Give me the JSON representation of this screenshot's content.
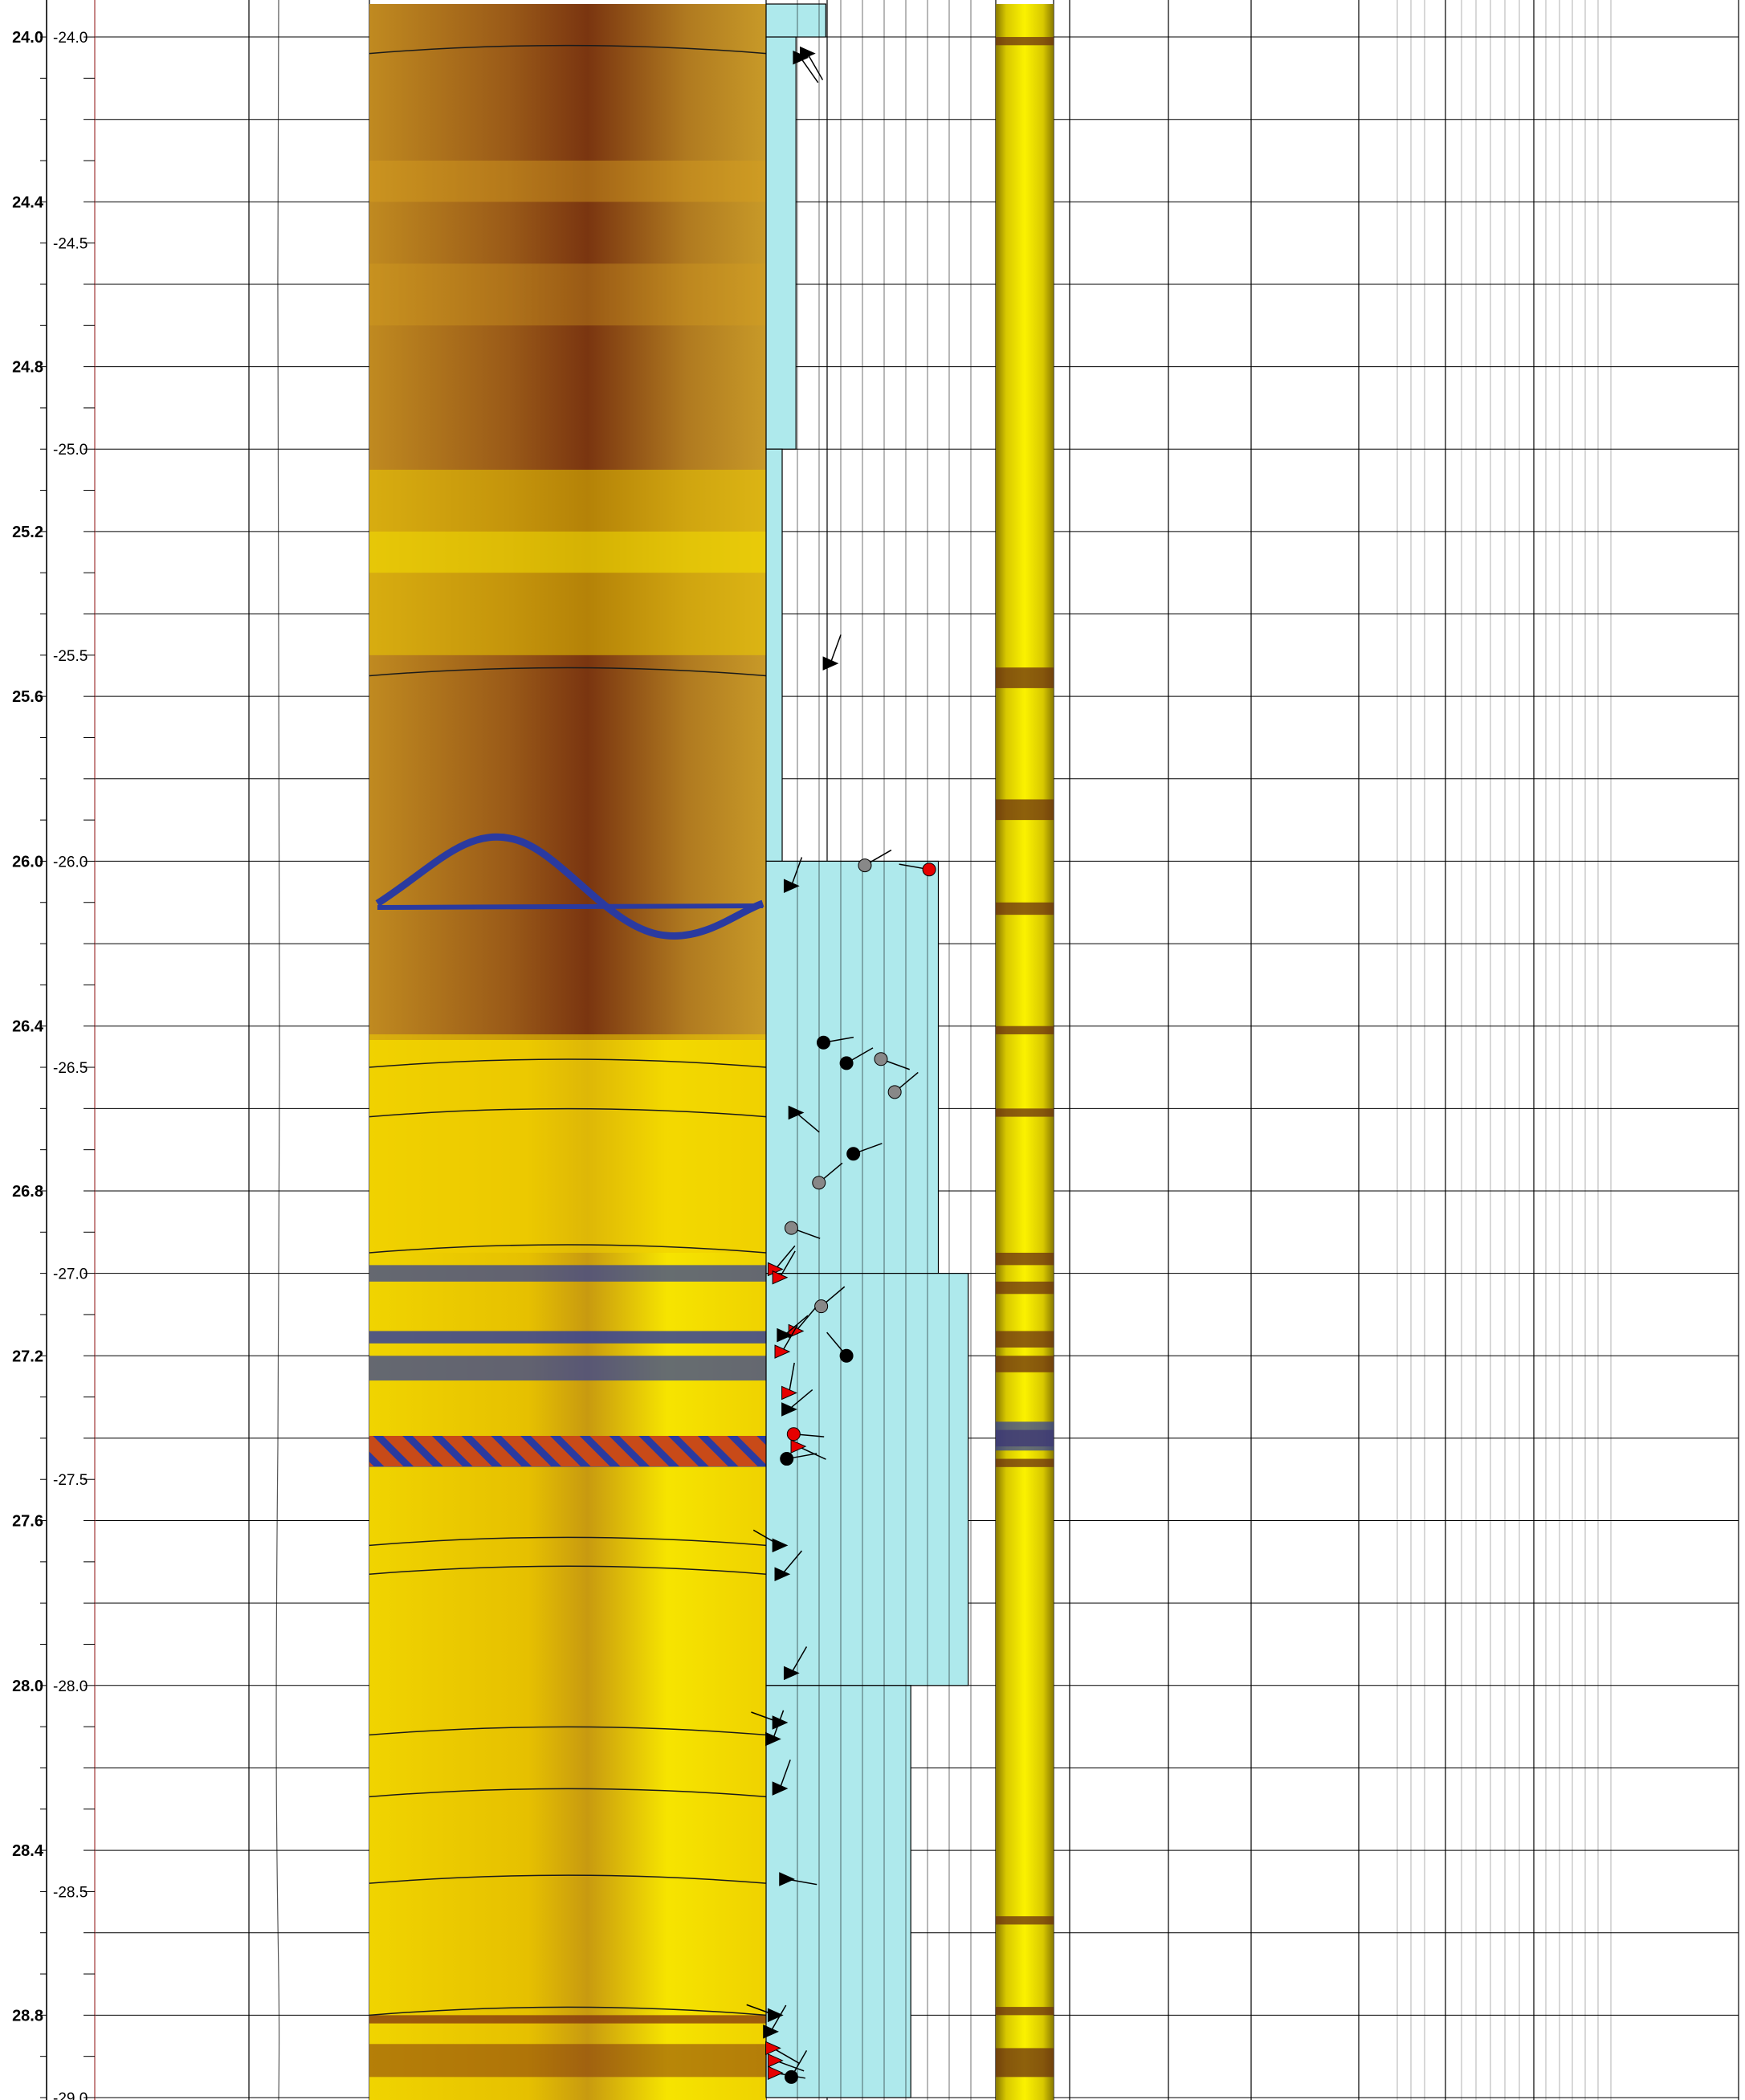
{
  "depth_axis": {
    "top": 23.92,
    "bottom": 29.0
  },
  "scale_left": {
    "labels": [
      {
        "value": 24.0,
        "text": "24.0"
      },
      {
        "value": 24.4,
        "text": "24.4"
      },
      {
        "value": 24.8,
        "text": "24.8"
      },
      {
        "value": 25.2,
        "text": "25.2"
      },
      {
        "value": 25.6,
        "text": "25.6"
      },
      {
        "value": 26.0,
        "text": "26.0"
      },
      {
        "value": 26.4,
        "text": "26.4"
      },
      {
        "value": 26.8,
        "text": "26.8"
      },
      {
        "value": 27.2,
        "text": "27.2"
      },
      {
        "value": 27.6,
        "text": "27.6"
      },
      {
        "value": 28.0,
        "text": "28.0"
      },
      {
        "value": 28.4,
        "text": "28.4"
      },
      {
        "value": 28.8,
        "text": "28.8"
      }
    ]
  },
  "scale_right": {
    "labels": [
      {
        "value": 24.0,
        "text": "-24.0"
      },
      {
        "value": 24.5,
        "text": "-24.5"
      },
      {
        "value": 25.0,
        "text": "-25.0"
      },
      {
        "value": 25.5,
        "text": "-25.5"
      },
      {
        "value": 26.0,
        "text": "-26.0"
      },
      {
        "value": 26.5,
        "text": "-26.5"
      },
      {
        "value": 27.0,
        "text": "-27.0"
      },
      {
        "value": 27.5,
        "text": "-27.5"
      },
      {
        "value": 28.0,
        "text": "-28.0"
      },
      {
        "value": 28.5,
        "text": "-28.5"
      },
      {
        "value": 29.0,
        "text": "-29.0"
      }
    ]
  },
  "colors": {
    "grid": "#000000",
    "image_dark": "#7a2a10",
    "image_mid": "#b8741a",
    "image_light": "#f5e000",
    "sinusoid_blue": "#2a3aa0",
    "histogram_fill": "#aee9ec",
    "marker_black": "#000000",
    "marker_red": "#e60000",
    "marker_gray": "#888888",
    "core_yellow": "#f2e400",
    "core_dark": "#6a3010"
  },
  "histogram_intervals": [
    {
      "from": 23.92,
      "to": 24.0,
      "value": 0.26
    },
    {
      "from": 24.0,
      "to": 25.0,
      "value": 0.13
    },
    {
      "from": 25.0,
      "to": 26.0,
      "value": 0.07
    },
    {
      "from": 26.0,
      "to": 27.0,
      "value": 0.75
    },
    {
      "from": 27.0,
      "to": 28.0,
      "value": 0.88
    },
    {
      "from": 28.0,
      "to": 29.0,
      "value": 0.63
    }
  ],
  "dips": [
    {
      "depth": 24.05,
      "x": 0.15,
      "shape": "triangle",
      "color": "black",
      "angle": 55
    },
    {
      "depth": 24.04,
      "x": 0.18,
      "shape": "triangle",
      "color": "black",
      "angle": 60
    },
    {
      "depth": 25.52,
      "x": 0.28,
      "shape": "triangle",
      "color": "black",
      "angle": -70
    },
    {
      "depth": 26.06,
      "x": 0.11,
      "shape": "triangle",
      "color": "black",
      "angle": -70
    },
    {
      "depth": 26.01,
      "x": 0.43,
      "shape": "circle",
      "color": "gray",
      "angle": -30
    },
    {
      "depth": 26.02,
      "x": 0.71,
      "shape": "circle",
      "color": "red",
      "angle": 190
    },
    {
      "depth": 26.44,
      "x": 0.25,
      "shape": "circle",
      "color": "black",
      "angle": -10
    },
    {
      "depth": 26.49,
      "x": 0.35,
      "shape": "circle",
      "color": "black",
      "angle": -30
    },
    {
      "depth": 26.48,
      "x": 0.5,
      "shape": "circle",
      "color": "gray",
      "angle": 20
    },
    {
      "depth": 26.56,
      "x": 0.56,
      "shape": "circle",
      "color": "gray",
      "angle": -40
    },
    {
      "depth": 26.61,
      "x": 0.13,
      "shape": "triangle",
      "color": "black",
      "angle": 40
    },
    {
      "depth": 26.71,
      "x": 0.38,
      "shape": "circle",
      "color": "black",
      "angle": -20
    },
    {
      "depth": 26.78,
      "x": 0.23,
      "shape": "circle",
      "color": "gray",
      "angle": -40
    },
    {
      "depth": 26.89,
      "x": 0.11,
      "shape": "circle",
      "color": "gray",
      "angle": 20
    },
    {
      "depth": 26.99,
      "x": 0.04,
      "shape": "triangle",
      "color": "red",
      "angle": -50
    },
    {
      "depth": 27.01,
      "x": 0.06,
      "shape": "triangle",
      "color": "red",
      "angle": -60
    },
    {
      "depth": 27.08,
      "x": 0.24,
      "shape": "circle",
      "color": "gray",
      "angle": -40
    },
    {
      "depth": 27.14,
      "x": 0.13,
      "shape": "triangle",
      "color": "red",
      "angle": -50
    },
    {
      "depth": 27.15,
      "x": 0.08,
      "shape": "triangle",
      "color": "black",
      "angle": -40
    },
    {
      "depth": 27.19,
      "x": 0.07,
      "shape": "triangle",
      "color": "red",
      "angle": -60
    },
    {
      "depth": 27.2,
      "x": 0.35,
      "shape": "circle",
      "color": "black",
      "angle": 230
    },
    {
      "depth": 27.29,
      "x": 0.1,
      "shape": "triangle",
      "color": "red",
      "angle": -80
    },
    {
      "depth": 27.33,
      "x": 0.1,
      "shape": "triangle",
      "color": "black",
      "angle": -40
    },
    {
      "depth": 27.39,
      "x": 0.12,
      "shape": "circle",
      "color": "red",
      "angle": 5
    },
    {
      "depth": 27.42,
      "x": 0.14,
      "shape": "triangle",
      "color": "red",
      "angle": 25
    },
    {
      "depth": 27.45,
      "x": 0.09,
      "shape": "circle",
      "color": "black",
      "angle": -10
    },
    {
      "depth": 27.66,
      "x": 0.06,
      "shape": "triangle",
      "color": "black",
      "angle": 210
    },
    {
      "depth": 27.73,
      "x": 0.07,
      "shape": "triangle",
      "color": "black",
      "angle": -50
    },
    {
      "depth": 27.97,
      "x": 0.11,
      "shape": "triangle",
      "color": "black",
      "angle": -60
    },
    {
      "depth": 28.09,
      "x": 0.06,
      "shape": "triangle",
      "color": "black",
      "angle": 200
    },
    {
      "depth": 28.13,
      "x": 0.03,
      "shape": "triangle",
      "color": "black",
      "angle": -70
    },
    {
      "depth": 28.25,
      "x": 0.06,
      "shape": "triangle",
      "color": "black",
      "angle": -70
    },
    {
      "depth": 28.47,
      "x": 0.09,
      "shape": "triangle",
      "color": "black",
      "angle": 10
    },
    {
      "depth": 28.8,
      "x": 0.04,
      "shape": "triangle",
      "color": "black",
      "angle": 200
    },
    {
      "depth": 28.84,
      "x": 0.02,
      "shape": "triangle",
      "color": "black",
      "angle": -60
    },
    {
      "depth": 28.88,
      "x": 0.03,
      "shape": "triangle",
      "color": "red",
      "angle": 30
    },
    {
      "depth": 28.91,
      "x": 0.04,
      "shape": "triangle",
      "color": "red",
      "angle": 20
    },
    {
      "depth": 28.94,
      "x": 0.04,
      "shape": "triangle",
      "color": "red",
      "angle": 10
    },
    {
      "depth": 28.95,
      "x": 0.11,
      "shape": "circle",
      "color": "black",
      "angle": -60
    }
  ]
}
